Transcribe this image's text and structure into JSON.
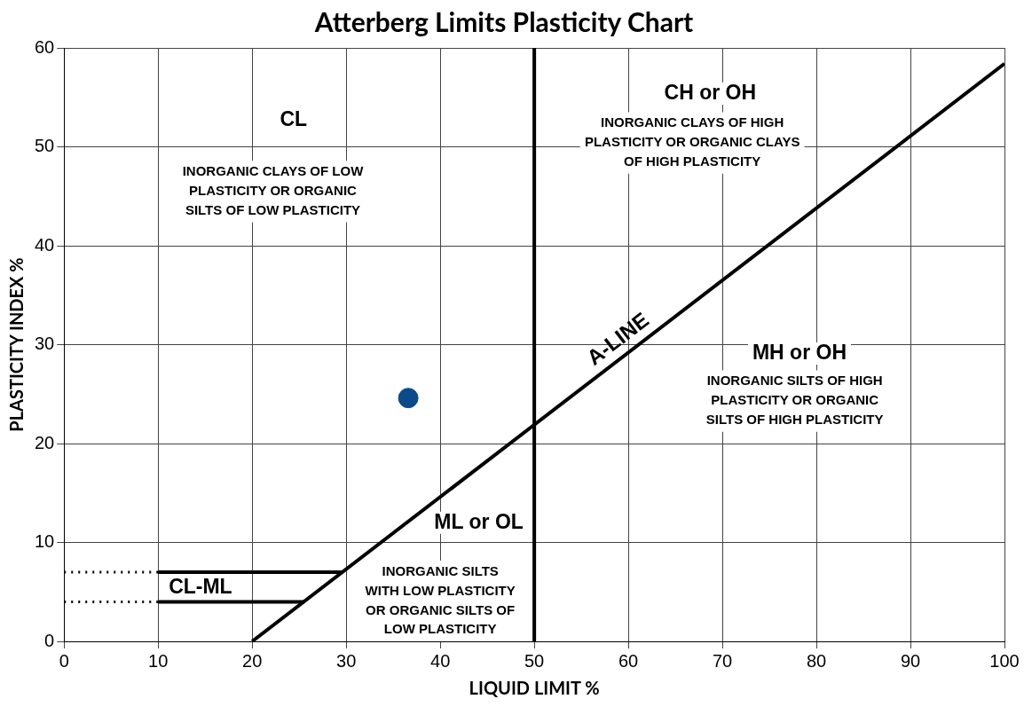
{
  "chart_data": {
    "type": "line",
    "title": "Atterberg Limits Plasticity Chart",
    "xlabel": "LIQUID LIMIT %",
    "ylabel": "PLASTICITY INDEX %",
    "xlim": [
      0,
      100
    ],
    "xticks": [
      0,
      10,
      20,
      30,
      40,
      50,
      60,
      70,
      80,
      90,
      100
    ],
    "ylim": [
      0,
      60
    ],
    "yticks": [
      0,
      10,
      20,
      30,
      40,
      50,
      60
    ],
    "grid": true,
    "legend": false,
    "series": [
      {
        "name": "A-LINE",
        "type": "line",
        "color": "#000000",
        "x": [
          20,
          100
        ],
        "values": [
          0,
          58.4
        ],
        "line_style": "solid",
        "marker": "none"
      },
      {
        "type": "line",
        "color": "#000000",
        "x": [
          10,
          29.6
        ],
        "values": [
          7,
          7
        ],
        "line_style": "solid",
        "marker": "none"
      },
      {
        "type": "line",
        "color": "#000000",
        "x": [
          10,
          25.5
        ],
        "values": [
          4,
          4
        ],
        "line_style": "solid",
        "marker": "none"
      },
      {
        "type": "line",
        "color": "#000000",
        "x": [
          0,
          10
        ],
        "values": [
          7,
          7
        ],
        "line_style": "dotted",
        "marker": "none"
      },
      {
        "type": "line",
        "color": "#000000",
        "x": [
          0,
          10
        ],
        "values": [
          4,
          4
        ],
        "line_style": "dotted",
        "marker": "none"
      },
      {
        "type": "scatter",
        "color": "#0b4a8b",
        "x": [
          36.6
        ],
        "values": [
          24.6
        ],
        "marker": "circle"
      }
    ],
    "ref_lines": [
      {
        "axis": "x",
        "value": 50,
        "color": "#000000"
      }
    ],
    "annotations": [
      "CL",
      "INORGANIC CLAYS OF LOW\nPLASTICITY OR ORGANIC\nSILTS OF LOW PLASTICITY",
      "CH or OH",
      "INORGANIC CLAYS OF HIGH\nPLASTICITY OR ORGANIC CLAYS\nOF HIGH PLASTICITY",
      "MH or OH",
      "INORGANIC SILTS OF HIGH\nPLASTICITY OR ORGANIC\nSILTS OF HIGH PLASTICITY",
      "ML or OL",
      "INORGANIC SILTS\nWITH LOW PLASTICITY\nOR ORGANIC SILTS OF\nLOW PLASTICITY",
      "CL-ML"
    ]
  }
}
